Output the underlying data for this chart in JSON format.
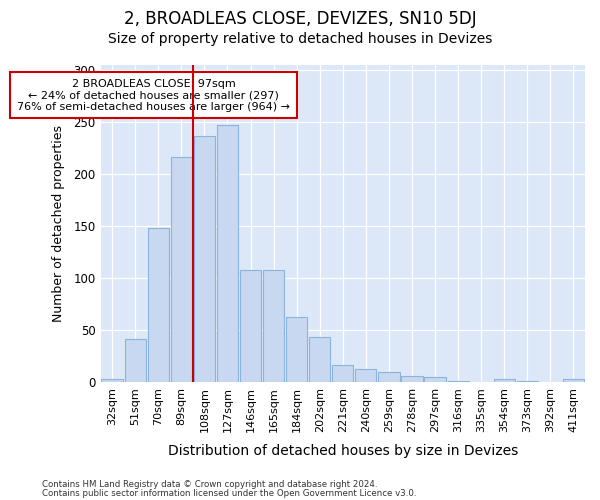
{
  "title": "2, BROADLEAS CLOSE, DEVIZES, SN10 5DJ",
  "subtitle": "Size of property relative to detached houses in Devizes",
  "xlabel": "Distribution of detached houses by size in Devizes",
  "ylabel": "Number of detached properties",
  "categories": [
    "32sqm",
    "51sqm",
    "70sqm",
    "89sqm",
    "108sqm",
    "127sqm",
    "146sqm",
    "165sqm",
    "184sqm",
    "202sqm",
    "221sqm",
    "240sqm",
    "259sqm",
    "278sqm",
    "297sqm",
    "316sqm",
    "335sqm",
    "354sqm",
    "373sqm",
    "392sqm",
    "411sqm"
  ],
  "values": [
    3,
    42,
    148,
    217,
    237,
    247,
    108,
    108,
    63,
    44,
    17,
    13,
    10,
    6,
    5,
    1,
    0,
    3,
    1,
    0,
    3
  ],
  "bar_color": "#c8d8f0",
  "bar_edge_color": "#8ab4dc",
  "annotation_text": "2 BROADLEAS CLOSE: 97sqm\n← 24% of detached houses are smaller (297)\n76% of semi-detached houses are larger (964) →",
  "annotation_box_facecolor": "#ffffff",
  "annotation_box_edgecolor": "#cc0000",
  "vline_color": "#cc0000",
  "footer1": "Contains HM Land Registry data © Crown copyright and database right 2024.",
  "footer2": "Contains public sector information licensed under the Open Government Licence v3.0.",
  "ylim": [
    0,
    305
  ],
  "bg_color": "#ffffff",
  "plot_bg_color": "#dce8f8",
  "title_fontsize": 12,
  "subtitle_fontsize": 10,
  "tick_fontsize": 8,
  "ylabel_fontsize": 9,
  "xlabel_fontsize": 10
}
